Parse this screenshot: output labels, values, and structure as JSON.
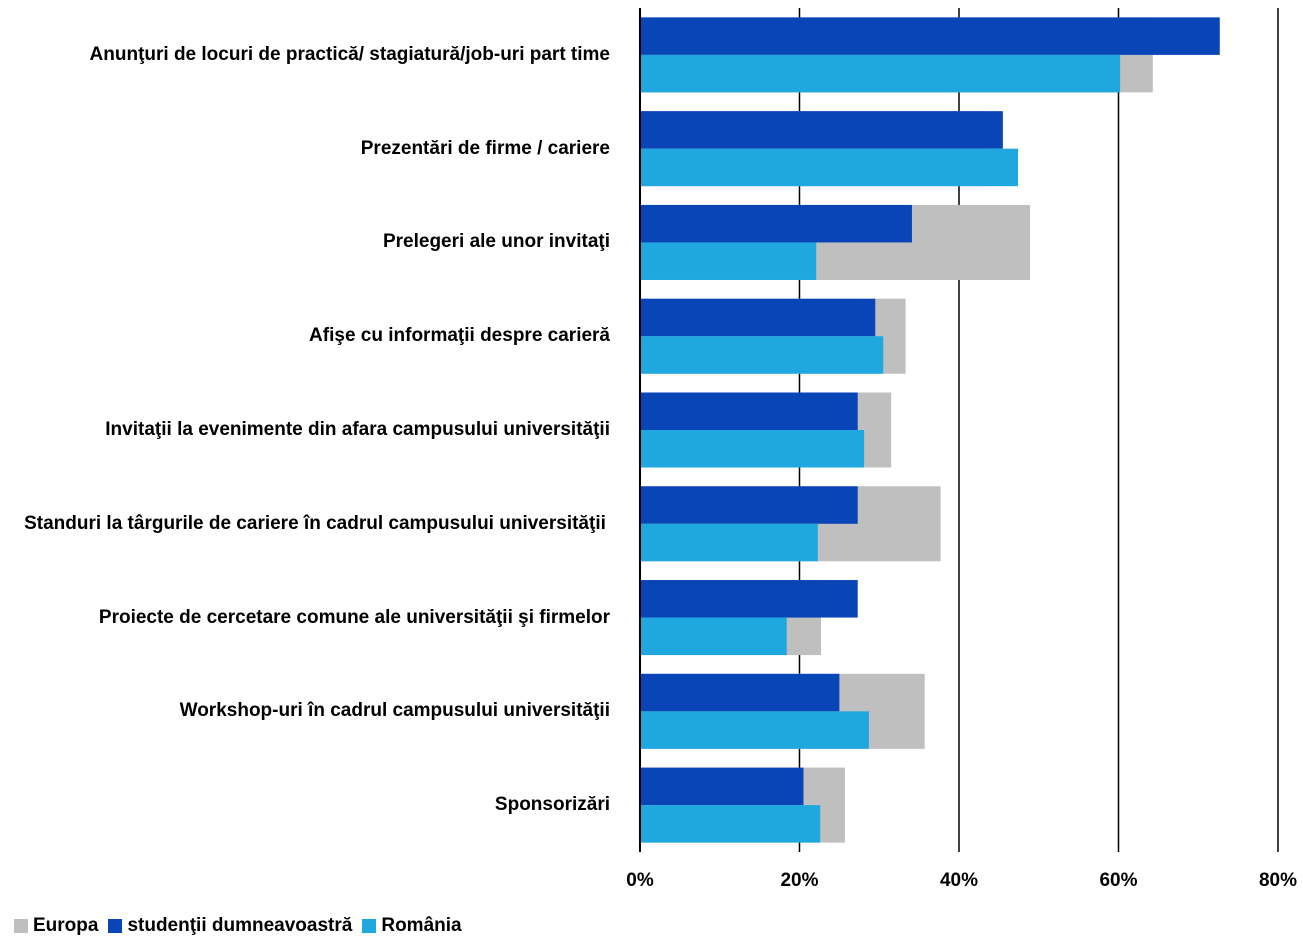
{
  "chart_data": {
    "type": "bar",
    "orientation": "horizontal",
    "categories": [
      "Anunţuri de locuri de practică/ stagiatură/job-uri part time",
      "Prezentări de firme / cariere",
      "Prelegeri ale unor invitaţi",
      "Afişe cu informaţii despre carieră",
      "Invitaţii la evenimente din afara campusului universităţii",
      "Standuri la târgurile de cariere în cadrul campusului universităţii",
      "Proiecte de cercetare comune ale universităţii şi firmelor",
      "Workshop-uri în cadrul campusului universităţii",
      "Sponsorizări"
    ],
    "series": [
      {
        "name": "Europa",
        "color": "#bfbfbf",
        "values": [
          64.3,
          43.3,
          48.9,
          33.3,
          31.5,
          37.7,
          22.7,
          35.7,
          25.7
        ]
      },
      {
        "name": "studenţii dumneavoastră",
        "color": "#0a45b8",
        "values": [
          72.7,
          45.5,
          34.1,
          29.5,
          27.3,
          27.3,
          27.3,
          25.0,
          20.5
        ]
      },
      {
        "name": "România",
        "color": "#1fa8df",
        "values": [
          60.2,
          47.4,
          22.1,
          30.5,
          28.1,
          22.3,
          18.4,
          28.7,
          22.6
        ]
      }
    ],
    "xlim": [
      0,
      80
    ],
    "x_ticks": [
      "0%",
      "20%",
      "40%",
      "60%",
      "80%"
    ],
    "xlabel": "",
    "ylabel": "",
    "grid": "vertical",
    "legend_position": "bottom-left"
  }
}
